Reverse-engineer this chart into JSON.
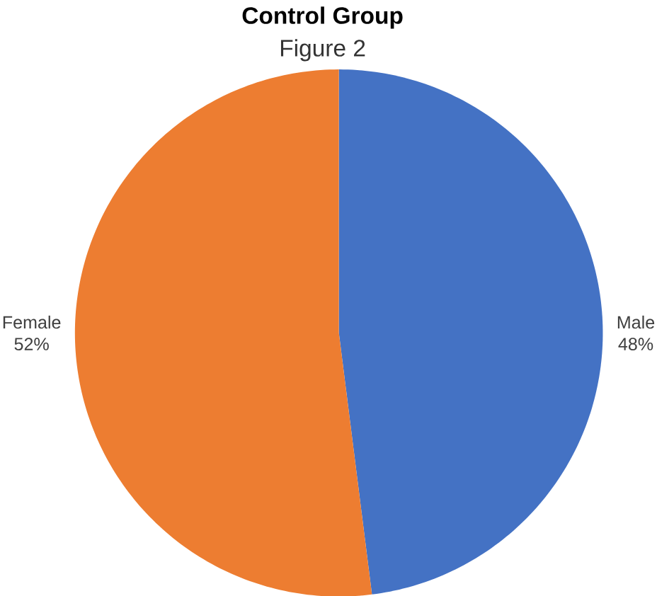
{
  "chart_data": {
    "type": "pie",
    "title": "Control Group",
    "subtitle": "Figure 2",
    "categories": [
      "Male",
      "Female"
    ],
    "values": [
      48,
      52
    ],
    "colors": [
      "#4472c4",
      "#ed7d31"
    ],
    "value_labels": [
      "48%",
      "52%"
    ]
  }
}
